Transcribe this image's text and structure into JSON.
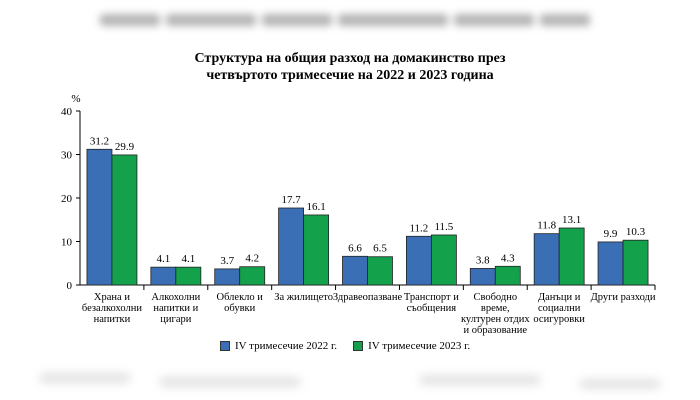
{
  "chart_data": {
    "type": "bar",
    "title": "Структура на общия разход на домакинство през четвъртото тримесечие на 2022 и 2023 година",
    "title_lines": [
      "Структура на общия разход на домакинство през",
      "четвъртото тримесечие на 2022 и 2023 година"
    ],
    "ylabel": "%",
    "ylim": [
      0,
      40
    ],
    "yticks": [
      "0",
      "10",
      "20",
      "30",
      "40"
    ],
    "grid": false,
    "legend_position": "bottom",
    "categories": [
      [
        "Храна и",
        "безалкохолни",
        "напитки"
      ],
      [
        "Алкохолни",
        "напитки и",
        "цигари"
      ],
      [
        "Облекло и",
        "обувки"
      ],
      [
        "За жилището"
      ],
      [
        "Здравеопазване"
      ],
      [
        "Транспорт и",
        "съобщения"
      ],
      [
        "Свободно",
        "време,",
        "културен отдих",
        "и образование"
      ],
      [
        "Данъци и",
        "социални",
        "осигуровки"
      ],
      [
        "Други разходи"
      ]
    ],
    "series": [
      {
        "name": "IV тримесечие 2022 г.",
        "color": "#3a6fb6",
        "values": [
          31.2,
          4.1,
          3.7,
          17.7,
          6.6,
          11.2,
          3.8,
          11.8,
          9.9
        ],
        "labels": [
          "31.2",
          "4.1",
          "3.7",
          "17.7",
          "6.6",
          "11.2",
          "3.8",
          "11.8",
          "9.9"
        ]
      },
      {
        "name": "IV тримесечие 2023 г.",
        "color": "#13a14b",
        "values": [
          29.9,
          4.1,
          4.2,
          16.1,
          6.5,
          11.5,
          4.3,
          13.1,
          10.3
        ],
        "labels": [
          "29.9",
          "4.1",
          "4.2",
          "16.1",
          "6.5",
          "11.5",
          "4.3",
          "13.1",
          "10.3"
        ]
      }
    ]
  }
}
